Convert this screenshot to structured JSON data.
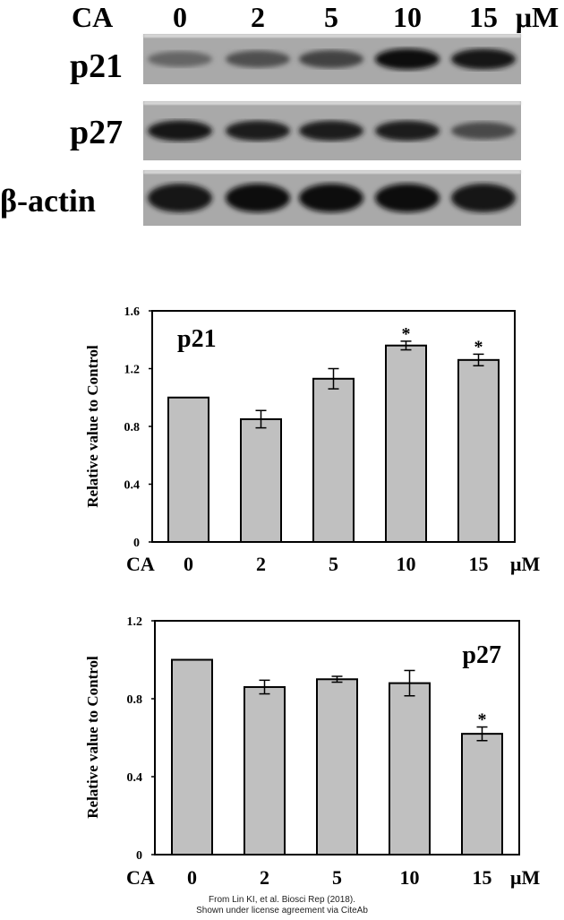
{
  "blot": {
    "treatment_label": "CA",
    "concentrations": [
      "0",
      "2",
      "5",
      "10",
      "15"
    ],
    "unit": "μM",
    "rows": [
      {
        "label": "p21",
        "intensities": [
          0.35,
          0.5,
          0.6,
          0.95,
          0.9
        ]
      },
      {
        "label": "p27",
        "intensities": [
          0.9,
          0.85,
          0.85,
          0.85,
          0.55
        ]
      },
      {
        "label": "β-actin",
        "intensities": [
          0.9,
          0.95,
          0.95,
          0.95,
          0.9
        ]
      }
    ]
  },
  "chart_data": [
    {
      "type": "bar",
      "title": "p21",
      "ylabel": "Relative value to Control",
      "xlabel_prefix": "CA",
      "xlabel_unit": "μM",
      "categories": [
        "0",
        "2",
        "5",
        "10",
        "15"
      ],
      "values": [
        1.0,
        0.85,
        1.13,
        1.36,
        1.26
      ],
      "errors": [
        0,
        0.06,
        0.07,
        0.03,
        0.04
      ],
      "significance": [
        "",
        "",
        "",
        "*",
        "*"
      ],
      "ylim": [
        0,
        1.6
      ],
      "yticks": [
        "0",
        "0.4",
        "0.8",
        "1.2",
        "1.6"
      ],
      "bar_color": "#c0c0c0",
      "grid": false
    },
    {
      "type": "bar",
      "title": "p27",
      "ylabel": "Relative value to Control",
      "xlabel_prefix": "CA",
      "xlabel_unit": "μM",
      "categories": [
        "0",
        "2",
        "5",
        "10",
        "15"
      ],
      "values": [
        1.0,
        0.86,
        0.9,
        0.88,
        0.62
      ],
      "errors": [
        0,
        0.035,
        0.015,
        0.065,
        0.035
      ],
      "significance": [
        "",
        "",
        "",
        "",
        "*"
      ],
      "ylim": [
        0,
        1.2
      ],
      "yticks": [
        "0",
        "0.4",
        "0.8",
        "1.2"
      ],
      "bar_color": "#c0c0c0",
      "grid": false
    }
  ],
  "credit": {
    "line1": "From Lin KI, et al. Biosci Rep (2018).",
    "line2": "Shown under license agreement via CiteAb"
  }
}
